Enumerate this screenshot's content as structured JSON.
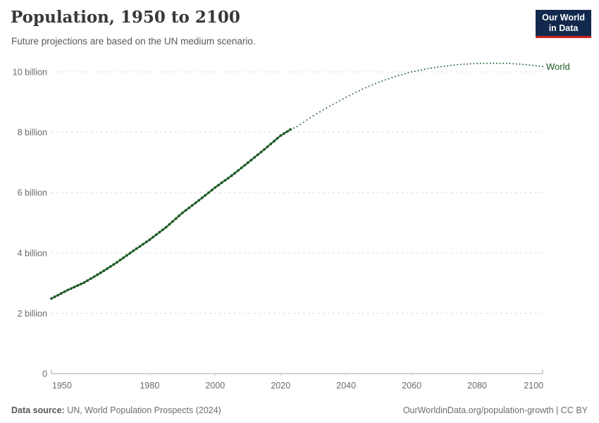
{
  "header": {
    "title": "Population, 1950 to 2100",
    "subtitle": "Future projections are based on the UN medium scenario.",
    "logo": {
      "line1": "Our World",
      "line2": "in Data",
      "bg_color": "#12284c",
      "accent_color": "#cb2420"
    }
  },
  "footer": {
    "source_label": "Data source:",
    "source_value": "UN, World Population Prospects (2024)",
    "credit": "OurWorldinData.org/population-growth | CC BY"
  },
  "chart_data": {
    "type": "line",
    "title": "Population, 1950 to 2100",
    "xlabel": "",
    "ylabel": "",
    "unit": "billion",
    "xlim": [
      1950,
      2100
    ],
    "ylim": [
      0,
      10.7
    ],
    "xticks": [
      1950,
      1980,
      2000,
      2020,
      2040,
      2060,
      2080,
      2100
    ],
    "yticks": {
      "values": [
        0,
        2,
        4,
        6,
        8,
        10
      ],
      "labels": [
        "0",
        "2 billion",
        "4 billion",
        "6 billion",
        "8 billion",
        "10 billion"
      ]
    },
    "grid": "dashed-horizontal",
    "legend_position": "end-of-line",
    "projection_start": 2023,
    "colors": {
      "line": "#1d5c26",
      "grid": "#d6d6d6",
      "axis": "#a5a5a5",
      "tick_text": "#6b6b6b"
    },
    "series": [
      {
        "name": "World",
        "historical": {
          "style": "solid-beaded",
          "x": [
            1950,
            1955,
            1960,
            1965,
            1970,
            1975,
            1980,
            1985,
            1990,
            1995,
            2000,
            2005,
            2010,
            2015,
            2020,
            2023
          ],
          "y": [
            2.49,
            2.77,
            3.02,
            3.34,
            3.69,
            4.07,
            4.44,
            4.85,
            5.33,
            5.74,
            6.17,
            6.56,
            6.99,
            7.43,
            7.89,
            8.09
          ]
        },
        "projection": {
          "style": "dotted",
          "x": [
            2023,
            2025,
            2030,
            2035,
            2040,
            2045,
            2050,
            2055,
            2060,
            2065,
            2070,
            2075,
            2080,
            2085,
            2090,
            2095,
            2100
          ],
          "y": [
            8.09,
            8.19,
            8.55,
            8.87,
            9.16,
            9.43,
            9.66,
            9.85,
            10.0,
            10.11,
            10.19,
            10.25,
            10.28,
            10.29,
            10.28,
            10.24,
            10.18
          ]
        }
      }
    ]
  }
}
